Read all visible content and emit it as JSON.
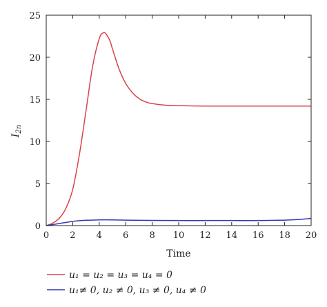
{
  "chart_data": {
    "type": "line",
    "xlabel": "Time",
    "ylabel": "I",
    "ylabel_sub": "2n",
    "xlim": [
      0,
      20
    ],
    "ylim": [
      0,
      25
    ],
    "x_ticks": [
      0,
      2,
      4,
      6,
      8,
      10,
      12,
      14,
      16,
      18,
      20
    ],
    "y_ticks": [
      0,
      5,
      10,
      15,
      20,
      25
    ],
    "grid": false,
    "legend_position": "bottom",
    "series": [
      {
        "name": "u1 = u2 = u3 = u4 = 0",
        "color": "#d9434b",
        "x": [
          0,
          0.5,
          1,
          1.5,
          2,
          2.5,
          3,
          3.5,
          4,
          4.3,
          4.5,
          4.8,
          5,
          5.5,
          6,
          6.5,
          7,
          7.5,
          8,
          9,
          10,
          12,
          14,
          16,
          18,
          20
        ],
        "y": [
          0,
          0.3,
          0.9,
          2.1,
          4.3,
          8.4,
          13.6,
          18.9,
          22.2,
          22.9,
          22.8,
          22.0,
          21.0,
          18.6,
          16.9,
          15.8,
          15.1,
          14.7,
          14.5,
          14.3,
          14.25,
          14.2,
          14.2,
          14.2,
          14.2,
          14.2
        ]
      },
      {
        "name": "u1≠ 0, u2 ≠ 0, u3 ≠ 0, u4 ≠ 0",
        "color": "#3636b3",
        "x": [
          0,
          0.5,
          1,
          1.5,
          2,
          2.5,
          3,
          4,
          5,
          6,
          8,
          10,
          12,
          14,
          16,
          18,
          19,
          20
        ],
        "y": [
          0,
          0.12,
          0.25,
          0.38,
          0.5,
          0.58,
          0.63,
          0.68,
          0.68,
          0.65,
          0.62,
          0.6,
          0.6,
          0.6,
          0.6,
          0.65,
          0.72,
          0.85
        ]
      }
    ],
    "legend": {
      "items": [
        {
          "text": "u₁ = u₂ = u₃ = u₄ = 0",
          "color": "#d9434b"
        },
        {
          "text": "u₁≠ 0, u₂ ≠ 0, u₃ ≠ 0, u₄ ≠ 0",
          "color": "#3636b3"
        }
      ]
    }
  }
}
